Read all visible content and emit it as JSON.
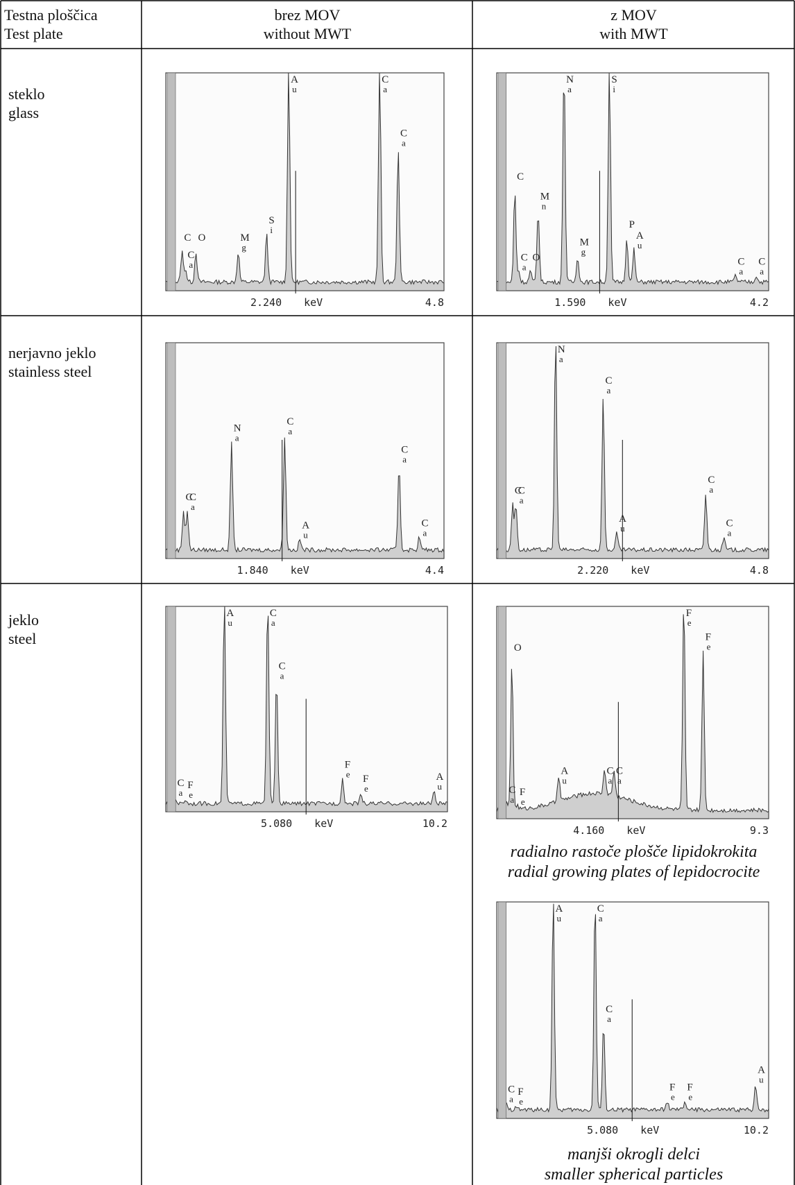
{
  "table": {
    "header": {
      "col1": [
        "Testna ploščica",
        "Test plate"
      ],
      "col2": [
        "brez MOV",
        "without  MWT"
      ],
      "col3": [
        "z MOV",
        "with MWT"
      ]
    },
    "rows": [
      {
        "label": [
          "steklo",
          "glass"
        ]
      },
      {
        "label": [
          "nerjavno jeklo",
          "stainless steel"
        ]
      },
      {
        "label": [
          "jeklo",
          "steel"
        ]
      }
    ],
    "captions": {
      "steel_mwt_1": [
        "radialno rastoče plošče lipidokrokita",
        "radial growing plates of lepidocrocite"
      ],
      "steel_mwt_2": [
        "manjši okrogli delci",
        "smaller spherical particles"
      ]
    }
  },
  "chart_data": [
    {
      "id": "glass_without_mwt",
      "type": "area",
      "x_unit": "keV",
      "x_range": [
        0,
        4.8
      ],
      "x_marker": "2.240",
      "x_max_label": "4.8",
      "xlabel": "keV",
      "peaks": [
        {
          "label": [
            "C",
            ""
          ],
          "x": 0.28
        },
        {
          "label": [
            "C",
            "a"
          ],
          "x": 0.34
        },
        {
          "label": [
            "O",
            ""
          ],
          "x": 0.52
        },
        {
          "label": [
            "M",
            "g"
          ],
          "x": 1.25
        },
        {
          "label": [
            "S",
            "i"
          ],
          "x": 1.74
        },
        {
          "label": [
            "A",
            "u"
          ],
          "x": 2.12
        },
        {
          "label": [
            "C",
            "a"
          ],
          "x": 3.69
        },
        {
          "label": [
            "C",
            "a"
          ],
          "x": 4.01
        }
      ]
    },
    {
      "id": "glass_with_mwt",
      "type": "area",
      "x_unit": "keV",
      "x_range": [
        0,
        4.2
      ],
      "x_marker": "1.590",
      "x_max_label": "4.2",
      "xlabel": "keV",
      "peaks": [
        {
          "label": [
            "C",
            ""
          ],
          "x": 0.28
        },
        {
          "label": [
            "C",
            "a"
          ],
          "x": 0.34
        },
        {
          "label": [
            "O",
            ""
          ],
          "x": 0.52
        },
        {
          "label": [
            "M",
            "n"
          ],
          "x": 0.64
        },
        {
          "label": [
            "N",
            "a"
          ],
          "x": 1.04
        },
        {
          "label": [
            "M",
            "g"
          ],
          "x": 1.25
        },
        {
          "label": [
            "S",
            "i"
          ],
          "x": 1.74
        },
        {
          "label": [
            "P",
            ""
          ],
          "x": 2.01
        },
        {
          "label": [
            "A",
            "u"
          ],
          "x": 2.12
        },
        {
          "label": [
            "C",
            "a"
          ],
          "x": 3.69
        },
        {
          "label": [
            "C",
            "a"
          ],
          "x": 4.01
        }
      ]
    },
    {
      "id": "stainless_without_mwt",
      "type": "area",
      "x_unit": "keV",
      "x_range": [
        0,
        4.4
      ],
      "x_marker": "1.840",
      "x_max_label": "4.4",
      "xlabel": "keV",
      "peaks": [
        {
          "label": [
            "C",
            ""
          ],
          "x": 0.28
        },
        {
          "label": [
            "C",
            "a"
          ],
          "x": 0.34
        },
        {
          "label": [
            "N",
            "a"
          ],
          "x": 1.04
        },
        {
          "label": [
            "C",
            "a"
          ],
          "x": 1.88
        },
        {
          "label": [
            "A",
            "u"
          ],
          "x": 2.12
        },
        {
          "label": [
            "C",
            "a"
          ],
          "x": 3.69
        },
        {
          "label": [
            "C",
            "a"
          ],
          "x": 4.01
        }
      ]
    },
    {
      "id": "stainless_with_mwt",
      "type": "area",
      "x_unit": "keV",
      "x_range": [
        0,
        4.8
      ],
      "x_marker": "2.220",
      "x_max_label": "4.8",
      "xlabel": "keV",
      "peaks": [
        {
          "label": [
            "C",
            ""
          ],
          "x": 0.28
        },
        {
          "label": [
            "C",
            "a"
          ],
          "x": 0.34
        },
        {
          "label": [
            "N",
            "a"
          ],
          "x": 1.04
        },
        {
          "label": [
            "C",
            "a"
          ],
          "x": 1.88
        },
        {
          "label": [
            "A",
            "u"
          ],
          "x": 2.12
        },
        {
          "label": [
            "C",
            "a"
          ],
          "x": 3.69
        },
        {
          "label": [
            "C",
            "a"
          ],
          "x": 4.01
        }
      ]
    },
    {
      "id": "steel_without_mwt",
      "type": "area",
      "x_unit": "keV",
      "x_range": [
        0,
        10.2
      ],
      "x_marker": "5.080",
      "x_max_label": "10.2",
      "xlabel": "keV",
      "peaks": [
        {
          "label": [
            "C",
            "a"
          ],
          "x": 0.34
        },
        {
          "label": [
            "F",
            "e"
          ],
          "x": 0.71
        },
        {
          "label": [
            "A",
            "u"
          ],
          "x": 2.12
        },
        {
          "label": [
            "C",
            "a"
          ],
          "x": 3.69
        },
        {
          "label": [
            "C",
            "a"
          ],
          "x": 4.01
        },
        {
          "label": [
            "F",
            "e"
          ],
          "x": 6.4
        },
        {
          "label": [
            "F",
            "e"
          ],
          "x": 7.06
        },
        {
          "label": [
            "A",
            "u"
          ],
          "x": 9.71
        }
      ]
    },
    {
      "id": "steel_with_mwt_plates",
      "type": "area",
      "x_unit": "keV",
      "x_range": [
        0,
        9.3
      ],
      "x_marker": "4.160",
      "x_max_label": "9.3",
      "xlabel": "keV",
      "peaks": [
        {
          "label": [
            "C",
            "a"
          ],
          "x": 0.34
        },
        {
          "label": [
            "O",
            ""
          ],
          "x": 0.52
        },
        {
          "label": [
            "F",
            "e"
          ],
          "x": 0.71
        },
        {
          "label": [
            "A",
            "u"
          ],
          "x": 2.12
        },
        {
          "label": [
            "C",
            "a"
          ],
          "x": 3.69
        },
        {
          "label": [
            "C",
            "a"
          ],
          "x": 4.01
        },
        {
          "label": [
            "F",
            "e"
          ],
          "x": 6.4
        },
        {
          "label": [
            "F",
            "e"
          ],
          "x": 7.06
        }
      ]
    },
    {
      "id": "steel_with_mwt_particles",
      "type": "area",
      "x_unit": "keV",
      "x_range": [
        0,
        10.2
      ],
      "x_marker": "5.080",
      "x_max_label": "10.2",
      "xlabel": "keV",
      "peaks": [
        {
          "label": [
            "C",
            "a"
          ],
          "x": 0.34
        },
        {
          "label": [
            "F",
            "e"
          ],
          "x": 0.71
        },
        {
          "label": [
            "A",
            "u"
          ],
          "x": 2.12
        },
        {
          "label": [
            "C",
            "a"
          ],
          "x": 3.69
        },
        {
          "label": [
            "C",
            "a"
          ],
          "x": 4.01
        },
        {
          "label": [
            "F",
            "e"
          ],
          "x": 6.4
        },
        {
          "label": [
            "F",
            "e"
          ],
          "x": 7.06
        },
        {
          "label": [
            "A",
            "u"
          ],
          "x": 9.71
        }
      ]
    }
  ]
}
